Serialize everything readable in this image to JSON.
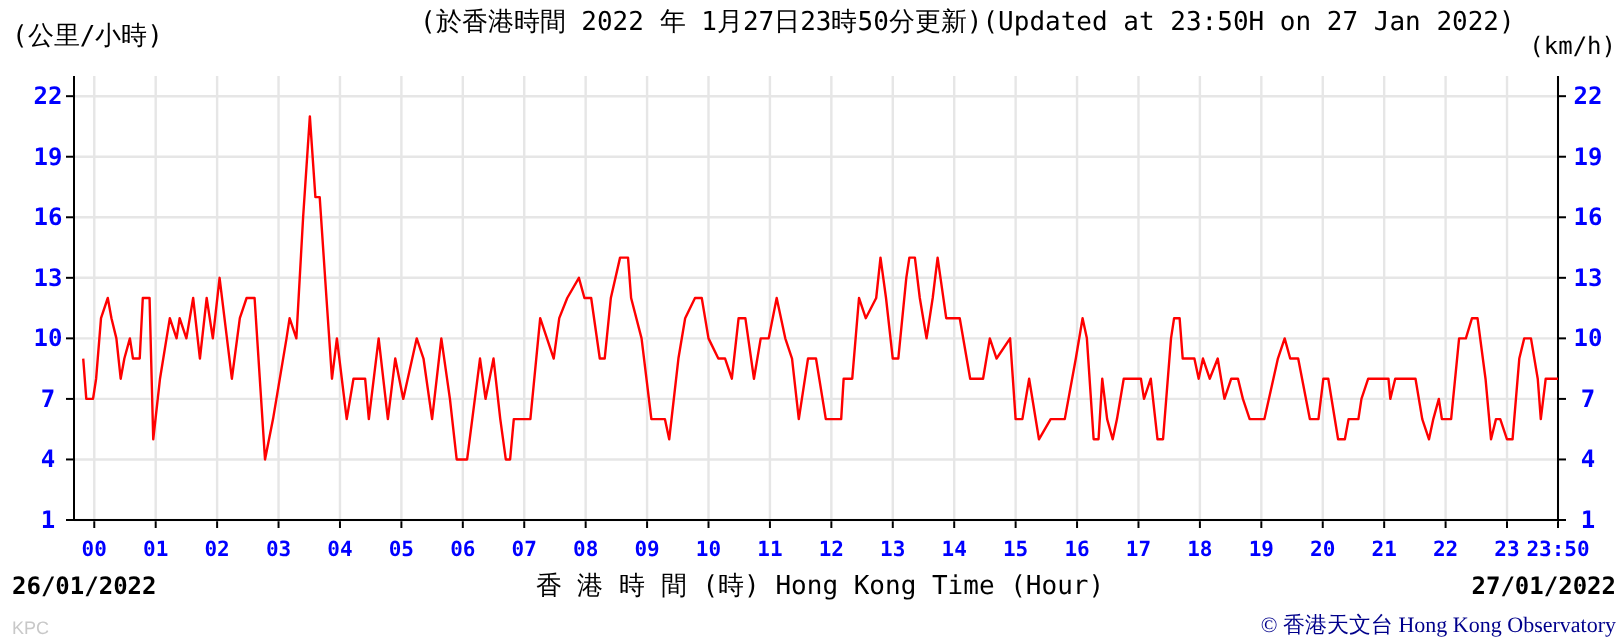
{
  "chart_data": {
    "type": "line",
    "title": "(於香港時間 2022 年 1月27日23時50分更新)(Updated at 23:50H on 27 Jan 2022)",
    "xlabel": "香 港 時 間 (時) Hong Kong Time (Hour)",
    "ylabel": "(公里/小時)",
    "y2label": "(km/h)",
    "annotations": [
      "26/01/2022",
      "27/01/2022",
      "KPC",
      "© 香港天文台 Hong Kong Observatory"
    ],
    "xlim": [
      -0.33,
      23.83
    ],
    "xticks": [
      {
        "value": 0,
        "label": "00"
      },
      {
        "value": 1,
        "label": "01"
      },
      {
        "value": 2,
        "label": "02"
      },
      {
        "value": 3,
        "label": "03"
      },
      {
        "value": 4,
        "label": "04"
      },
      {
        "value": 5,
        "label": "05"
      },
      {
        "value": 6,
        "label": "06"
      },
      {
        "value": 7,
        "label": "07"
      },
      {
        "value": 8,
        "label": "08"
      },
      {
        "value": 9,
        "label": "09"
      },
      {
        "value": 10,
        "label": "10"
      },
      {
        "value": 11,
        "label": "11"
      },
      {
        "value": 12,
        "label": "12"
      },
      {
        "value": 13,
        "label": "13"
      },
      {
        "value": 14,
        "label": "14"
      },
      {
        "value": 15,
        "label": "15"
      },
      {
        "value": 16,
        "label": "16"
      },
      {
        "value": 17,
        "label": "17"
      },
      {
        "value": 18,
        "label": "18"
      },
      {
        "value": 19,
        "label": "19"
      },
      {
        "value": 20,
        "label": "20"
      },
      {
        "value": 21,
        "label": "21"
      },
      {
        "value": 22,
        "label": "22"
      },
      {
        "value": 23,
        "label": "23"
      },
      {
        "value": 23.83,
        "label": "23:50"
      }
    ],
    "ylim": [
      1,
      23
    ],
    "yticks": [
      1,
      4,
      7,
      10,
      13,
      16,
      19,
      22
    ],
    "y2lim": [
      1,
      23
    ],
    "y2ticks": [
      1,
      4,
      7,
      10,
      13,
      16,
      19,
      22
    ],
    "grid": true,
    "series": [
      {
        "color": "#ff0000",
        "x": [
          -0.18,
          -0.13,
          -0.02,
          0.03,
          0.11,
          0.22,
          0.28,
          0.36,
          0.43,
          0.49,
          0.58,
          0.63,
          0.74,
          0.79,
          0.9,
          0.96,
          1.07,
          1.23,
          1.34,
          1.39,
          1.5,
          1.61,
          1.72,
          1.83,
          1.93,
          2.04,
          2.24,
          2.37,
          2.48,
          2.61,
          2.78,
          2.91,
          3.13,
          3.18,
          3.29,
          3.4,
          3.51,
          3.6,
          3.67,
          3.78,
          3.87,
          3.95,
          4.11,
          4.22,
          4.41,
          4.47,
          4.63,
          4.78,
          4.9,
          5.03,
          5.25,
          5.36,
          5.5,
          5.65,
          5.79,
          5.9,
          6.07,
          6.28,
          6.37,
          6.5,
          6.61,
          6.7,
          6.77,
          6.83,
          7.1,
          7.26,
          7.37,
          7.48,
          7.57,
          7.7,
          7.89,
          7.98,
          8.09,
          8.23,
          8.31,
          8.41,
          8.56,
          8.69,
          8.74,
          8.91,
          9.07,
          9.29,
          9.36,
          9.51,
          9.62,
          9.78,
          9.89,
          10.0,
          10.16,
          10.27,
          10.38,
          10.49,
          10.6,
          10.74,
          10.85,
          10.98,
          11.11,
          11.25,
          11.36,
          11.47,
          11.62,
          11.75,
          11.91,
          12.16,
          12.2,
          12.34,
          12.45,
          12.56,
          12.73,
          12.8,
          12.89,
          13.0,
          13.09,
          13.22,
          13.27,
          13.36,
          13.44,
          13.55,
          13.65,
          13.73,
          13.87,
          14.09,
          14.26,
          14.37,
          14.47,
          14.58,
          14.69,
          14.91,
          15.0,
          15.11,
          15.22,
          15.38,
          15.57,
          15.62,
          15.8,
          15.98,
          16.09,
          16.16,
          16.27,
          16.35,
          16.41,
          16.49,
          16.58,
          16.65,
          16.76,
          16.93,
          17.04,
          17.09,
          17.2,
          17.31,
          17.4,
          17.53,
          17.58,
          17.67,
          17.72,
          17.91,
          17.98,
          18.05,
          18.16,
          18.29,
          18.4,
          18.51,
          18.62,
          18.7,
          18.81,
          19.05,
          19.27,
          19.38,
          19.47,
          19.6,
          19.79,
          19.93,
          20.01,
          20.09,
          20.25,
          20.36,
          20.42,
          20.58,
          20.63,
          20.74,
          21.07,
          21.1,
          21.18,
          21.34,
          21.51,
          21.62,
          21.73,
          21.8,
          21.89,
          21.94,
          22.09,
          22.22,
          22.33,
          22.43,
          22.52,
          22.65,
          22.74,
          22.82,
          22.89,
          23.0,
          23.09,
          23.2,
          23.28,
          23.39,
          23.5,
          23.55,
          23.63,
          23.74,
          23.83
        ],
        "values": [
          9,
          7,
          7,
          8,
          11,
          12,
          11,
          10,
          8,
          9,
          10,
          9,
          9,
          12,
          12,
          5,
          8,
          11,
          10,
          11,
          10,
          12,
          9,
          12,
          10,
          13,
          8,
          11,
          12,
          12,
          4,
          6,
          10,
          11,
          10,
          16,
          21,
          17,
          17,
          12,
          8,
          10,
          6,
          8,
          8,
          6,
          10,
          6,
          9,
          7,
          10,
          9,
          6,
          10,
          7,
          4,
          4,
          9,
          7,
          9,
          6,
          4,
          4,
          6,
          6,
          11,
          10,
          9,
          11,
          12,
          13,
          12,
          12,
          9,
          9,
          12,
          14,
          14,
          12,
          10,
          6,
          6,
          5,
          9,
          11,
          12,
          12,
          10,
          9,
          9,
          8,
          11,
          11,
          8,
          10,
          10,
          12,
          10,
          9,
          6,
          9,
          9,
          6,
          6,
          8,
          8,
          12,
          11,
          12,
          14,
          12,
          9,
          9,
          13,
          14,
          14,
          12,
          10,
          12,
          14,
          11,
          11,
          8,
          8,
          8,
          10,
          9,
          10,
          6,
          6,
          8,
          5,
          6,
          6,
          6,
          9,
          11,
          10,
          5,
          5,
          8,
          6,
          5,
          6,
          8,
          8,
          8,
          7,
          8,
          5,
          5,
          10,
          11,
          11,
          9,
          9,
          8,
          9,
          8,
          9,
          7,
          8,
          8,
          7,
          6,
          6,
          9,
          10,
          9,
          9,
          6,
          6,
          8,
          8,
          5,
          5,
          6,
          6,
          7,
          8,
          8,
          7,
          8,
          8,
          8,
          6,
          5,
          6,
          7,
          6,
          6,
          10,
          10,
          11,
          11,
          8,
          5,
          6,
          6,
          5,
          5,
          9,
          10,
          10,
          8,
          6,
          8,
          8,
          8
        ]
      }
    ]
  }
}
